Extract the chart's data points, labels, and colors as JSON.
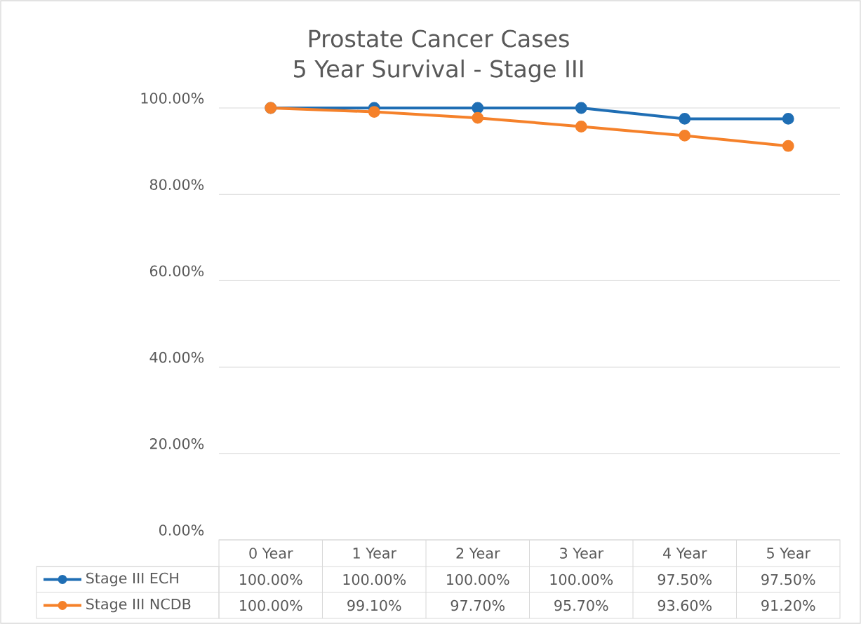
{
  "chart_data": {
    "type": "line",
    "title": "Prostate Cancer Cases",
    "subtitle": "5 Year Survival - Stage III",
    "categories": [
      "0 Year",
      "1 Year",
      "2 Year",
      "3 Year",
      "4 Year",
      "5 Year"
    ],
    "series": [
      {
        "name": "Stage III ECH",
        "color": "#1f6eb4",
        "values": [
          100,
          100,
          100,
          100,
          97.5,
          97.5
        ],
        "value_labels": [
          "100.00%",
          "100.00%",
          "100.00%",
          "100.00%",
          "97.50%",
          "97.50%"
        ]
      },
      {
        "name": "Stage III NCDB",
        "color": "#f5812a",
        "values": [
          100,
          99.1,
          97.7,
          95.7,
          93.6,
          91.2
        ],
        "value_labels": [
          "100.00%",
          "99.10%",
          "97.70%",
          "95.70%",
          "93.60%",
          "91.20%"
        ]
      }
    ],
    "ylim": [
      0,
      100
    ],
    "yticks": [
      {
        "value": 0,
        "label": "0.00%"
      },
      {
        "value": 20,
        "label": "20.00%"
      },
      {
        "value": 40,
        "label": "40.00%"
      },
      {
        "value": 60,
        "label": "60.00%"
      },
      {
        "value": 80,
        "label": "80.00%"
      },
      {
        "value": 100,
        "label": "100.00%"
      }
    ],
    "grid": "y",
    "legend": "bottom",
    "marker": "circle",
    "line_style": "solid"
  }
}
